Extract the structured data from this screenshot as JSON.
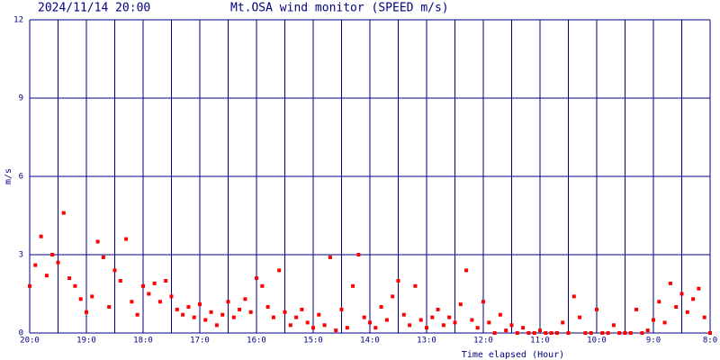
{
  "chart_data": {
    "type": "scatter",
    "title": "Mt.OSA wind monitor (SPEED m/s)",
    "timestamp": "2024/11/14 20:00",
    "xlabel": "Time elapsed (Hour)",
    "ylabel": "m/s",
    "color": "#ff0000",
    "grid_color": "#000080",
    "xlim": [
      0,
      12
    ],
    "ylim": [
      0,
      12
    ],
    "yticks": [
      0,
      3,
      6,
      9,
      12
    ],
    "xticks": [
      {
        "value": 0,
        "label": "20:0"
      },
      {
        "value": 1,
        "label": "19:0"
      },
      {
        "value": 2,
        "label": "18:0"
      },
      {
        "value": 3,
        "label": "17:0"
      },
      {
        "value": 4,
        "label": "16:0"
      },
      {
        "value": 5,
        "label": "15:0"
      },
      {
        "value": 6,
        "label": "14:0"
      },
      {
        "value": 7,
        "label": "13:0"
      },
      {
        "value": 8,
        "label": "12:0"
      },
      {
        "value": 9,
        "label": "11:0"
      },
      {
        "value": 10,
        "label": "10:0"
      },
      {
        "value": 11,
        "label": "9:0"
      },
      {
        "value": 12,
        "label": "8:0"
      }
    ],
    "xgridlines": [
      0,
      0.5,
      1,
      1.5,
      2,
      2.5,
      3,
      3.5,
      4,
      4.5,
      5,
      5.5,
      6,
      6.5,
      7,
      7.5,
      8,
      8.5,
      9,
      9.5,
      10,
      10.5,
      11,
      11.5,
      12
    ],
    "x": [
      0,
      0.1,
      0.2,
      0.3,
      0.4,
      0.5,
      0.6,
      0.7,
      0.8,
      0.9,
      1,
      1.1,
      1.2,
      1.3,
      1.4,
      1.5,
      1.6,
      1.7,
      1.8,
      1.9,
      2,
      2.1,
      2.2,
      2.3,
      2.4,
      2.5,
      2.6,
      2.7,
      2.8,
      2.9,
      3,
      3.1,
      3.2,
      3.3,
      3.4,
      3.5,
      3.6,
      3.7,
      3.8,
      3.9,
      4,
      4.1,
      4.2,
      4.3,
      4.4,
      4.5,
      4.6,
      4.7,
      4.8,
      4.9,
      5,
      5.1,
      5.2,
      5.3,
      5.4,
      5.5,
      5.6,
      5.7,
      5.8,
      5.9,
      6,
      6.1,
      6.2,
      6.3,
      6.4,
      6.5,
      6.6,
      6.7,
      6.8,
      6.9,
      7,
      7.1,
      7.2,
      7.3,
      7.4,
      7.5,
      7.6,
      7.7,
      7.8,
      7.9,
      8,
      8.1,
      8.2,
      8.3,
      8.4,
      8.5,
      8.6,
      8.7,
      8.8,
      8.9,
      9,
      9.1,
      9.2,
      9.3,
      9.4,
      9.5,
      9.6,
      9.7,
      9.8,
      9.9,
      10,
      10.1,
      10.2,
      10.3,
      10.4,
      10.5,
      10.6,
      10.7,
      10.8,
      10.9,
      11,
      11.1,
      11.2,
      11.3,
      11.4,
      11.5,
      11.6,
      11.7,
      11.8,
      11.9,
      12
    ],
    "values": [
      1.8,
      2.6,
      3.7,
      2.2,
      3.0,
      2.7,
      4.6,
      2.1,
      1.8,
      1.3,
      0.8,
      1.4,
      3.5,
      2.9,
      1.0,
      2.4,
      2.0,
      3.6,
      1.2,
      0.7,
      1.8,
      1.5,
      1.9,
      1.2,
      2.0,
      1.4,
      0.9,
      0.7,
      1.0,
      0.6,
      1.1,
      0.5,
      0.8,
      0.3,
      0.7,
      1.2,
      0.6,
      0.9,
      1.3,
      0.8,
      2.1,
      1.8,
      1.0,
      0.6,
      2.4,
      0.8,
      0.3,
      0.6,
      0.9,
      0.4,
      0.2,
      0.7,
      0.3,
      2.9,
      0.1,
      0.9,
      0.2,
      1.8,
      3.0,
      0.6,
      0.4,
      0.2,
      1.0,
      0.5,
      1.4,
      2.0,
      0.7,
      0.3,
      1.8,
      0.5,
      0.2,
      0.6,
      0.9,
      0.3,
      0.6,
      0.4,
      1.1,
      2.4,
      0.5,
      0.2,
      1.2,
      0.4,
      0.0,
      0.7,
      0.1,
      0.3,
      0.0,
      0.2,
      0.0,
      0.0,
      0.1,
      0.0,
      0.0,
      0.0,
      0.4,
      0.0,
      1.4,
      0.6,
      0.0,
      0.0,
      0.9,
      0.0,
      0.0,
      0.3,
      0.0,
      0.0,
      0.0,
      0.9,
      0.0,
      0.1,
      0.5,
      1.2,
      0.4,
      1.9,
      1.0,
      1.5,
      0.8,
      1.3,
      1.7,
      0.6,
      0.0
    ]
  }
}
